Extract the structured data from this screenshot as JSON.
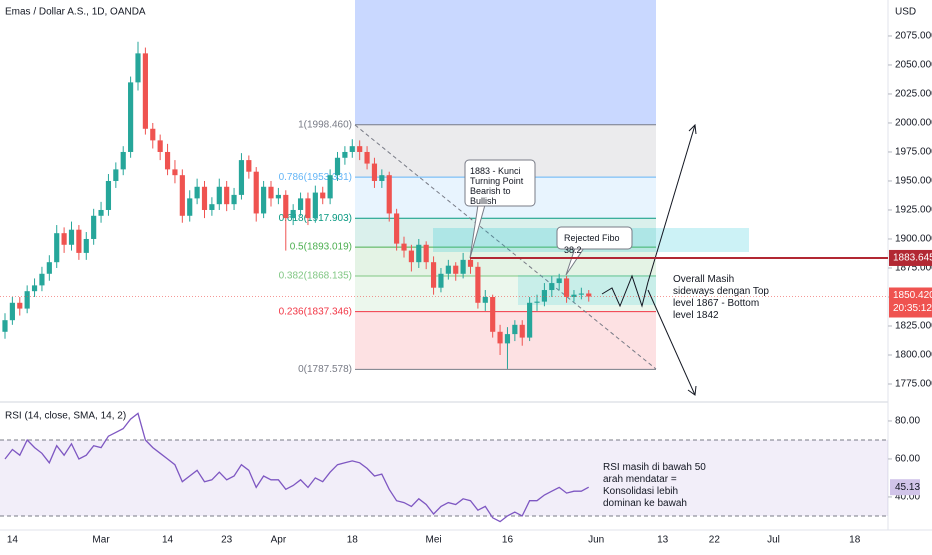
{
  "chart_data": [
    {
      "type": "candlestick",
      "title": "Emas / Dollar A.S., 1D, OANDA",
      "y_axis_label": "USD",
      "categories": [
        null,
        "14",
        null,
        null,
        null,
        null,
        null,
        null,
        null,
        null,
        null,
        null,
        null,
        "Mar",
        null,
        null,
        null,
        null,
        null,
        null,
        null,
        null,
        "14",
        null,
        null,
        null,
        null,
        null,
        null,
        null,
        "23",
        null,
        null,
        null,
        null,
        null,
        null,
        "Apr",
        null,
        null,
        null,
        null,
        null,
        null,
        null,
        null,
        null,
        "18",
        null,
        null,
        null,
        null,
        null,
        null,
        null,
        null,
        null,
        null,
        "Mei",
        null,
        null,
        null,
        null,
        null,
        null,
        null,
        null,
        null,
        "16",
        null,
        null,
        null,
        null,
        null,
        null,
        null,
        null,
        null,
        null,
        null,
        "Jun",
        null,
        null,
        null,
        null,
        null,
        null,
        null,
        null,
        "13",
        null,
        null,
        null,
        null,
        null,
        null,
        "22",
        null,
        null,
        null,
        null,
        null,
        null,
        null,
        "Jul",
        null,
        null,
        null,
        null,
        null,
        null,
        null,
        null,
        null,
        null,
        "18",
        null,
        null,
        null,
        null
      ],
      "open": [
        1820,
        1830,
        1845,
        1840,
        1855,
        1860,
        1870,
        1880,
        1905,
        1895,
        1908,
        1888,
        1900,
        1920,
        1925,
        1950,
        1960,
        1975,
        2035,
        2060,
        1995,
        1985,
        1975,
        1960,
        1955,
        1920,
        1935,
        1945,
        1925,
        1930,
        1945,
        1930,
        1938,
        1968,
        1958,
        1922,
        1945,
        1935,
        1938,
        1918,
        1925,
        1935,
        1918,
        1940,
        1935,
        1955,
        1970,
        1975,
        1980,
        1975,
        1965,
        1950,
        1955,
        1922,
        1896,
        1890,
        1880,
        1895,
        1880,
        1858,
        1870,
        1877,
        1870,
        1882,
        1876,
        1845,
        1850,
        1820,
        1810,
        1818,
        1826,
        1815,
        1845,
        1846,
        1856,
        1862,
        1866,
        1850,
        1852,
        1853,
        null,
        null,
        null,
        null,
        null,
        null,
        null,
        null,
        null,
        null,
        null,
        null,
        null,
        null,
        null,
        null,
        null,
        null,
        null,
        null,
        null,
        null,
        null,
        null,
        null,
        null,
        null,
        null,
        null,
        null,
        null,
        null,
        null,
        null,
        null,
        null,
        null,
        null,
        null,
        null
      ],
      "high": [
        1836,
        1850,
        1850,
        1860,
        1866,
        1876,
        1886,
        1912,
        1910,
        1915,
        1912,
        1906,
        1926,
        1932,
        1956,
        1966,
        1980,
        2040,
        2070,
        2065,
        2000,
        1990,
        1982,
        1968,
        1960,
        1942,
        1952,
        1950,
        1936,
        1952,
        1950,
        1944,
        1974,
        1972,
        1962,
        1950,
        1950,
        1944,
        1942,
        1930,
        1940,
        1940,
        1946,
        1945,
        1960,
        1975,
        1980,
        1986,
        1985,
        1980,
        1970,
        1960,
        1958,
        1926,
        1902,
        1895,
        1900,
        1898,
        1885,
        1875,
        1882,
        1880,
        1888,
        1884,
        1880,
        1856,
        1852,
        1826,
        1824,
        1830,
        1830,
        1850,
        1852,
        1862,
        1868,
        1870,
        1868,
        1856,
        1858,
        1856,
        null,
        null,
        null,
        null,
        null,
        null,
        null,
        null,
        null,
        null,
        null,
        null,
        null,
        null,
        null,
        null,
        null,
        null,
        null,
        null,
        null,
        null,
        null,
        null,
        null,
        null,
        null,
        null,
        null,
        null,
        null,
        null,
        null,
        null,
        null,
        null,
        null,
        null,
        null,
        null
      ],
      "low": [
        1814,
        1826,
        1834,
        1836,
        1850,
        1855,
        1864,
        1875,
        1888,
        1890,
        1882,
        1882,
        1895,
        1914,
        1920,
        1944,
        1955,
        1970,
        2028,
        1990,
        1978,
        1968,
        1955,
        1948,
        1914,
        1915,
        1930,
        1918,
        1920,
        1925,
        1924,
        1925,
        1934,
        1952,
        1915,
        1918,
        1928,
        1930,
        1890,
        1912,
        1920,
        1912,
        1914,
        1930,
        1930,
        1950,
        1964,
        1970,
        1968,
        1960,
        1944,
        1944,
        1915,
        1890,
        1884,
        1872,
        1875,
        1874,
        1852,
        1854,
        1865,
        1864,
        1866,
        1870,
        1840,
        1838,
        1815,
        1800,
        1788,
        1812,
        1808,
        1812,
        1838,
        1842,
        1850,
        1856,
        1845,
        1846,
        1848,
        1846,
        null,
        null,
        null,
        null,
        null,
        null,
        null,
        null,
        null,
        null,
        null,
        null,
        null,
        null,
        null,
        null,
        null,
        null,
        null,
        null,
        null,
        null,
        null,
        null,
        null,
        null,
        null,
        null,
        null,
        null,
        null,
        null,
        null,
        null,
        null,
        null,
        null,
        null,
        null,
        null
      ],
      "close": [
        1830,
        1845,
        1840,
        1855,
        1860,
        1870,
        1880,
        1905,
        1895,
        1908,
        1888,
        1900,
        1920,
        1925,
        1950,
        1960,
        1975,
        2035,
        2060,
        1995,
        1985,
        1975,
        1960,
        1955,
        1920,
        1935,
        1945,
        1925,
        1930,
        1945,
        1930,
        1938,
        1968,
        1958,
        1922,
        1945,
        1935,
        1938,
        1918,
        1925,
        1935,
        1918,
        1940,
        1935,
        1955,
        1970,
        1975,
        1980,
        1975,
        1965,
        1950,
        1955,
        1922,
        1896,
        1890,
        1880,
        1895,
        1880,
        1858,
        1870,
        1877,
        1870,
        1882,
        1876,
        1845,
        1850,
        1820,
        1810,
        1818,
        1826,
        1815,
        1845,
        1846,
        1856,
        1862,
        1866,
        1850,
        1852,
        1853,
        1850.42,
        null,
        null,
        null,
        null,
        null,
        null,
        null,
        null,
        null,
        null,
        null,
        null,
        null,
        null,
        null,
        null,
        null,
        null,
        null,
        null,
        null,
        null,
        null,
        null,
        null,
        null,
        null,
        null,
        null,
        null,
        null,
        null,
        null,
        null,
        null,
        null,
        null,
        null,
        null,
        null
      ],
      "up_color": "#26a69a",
      "down_color": "#ef5350",
      "ylim": [
        1761.2,
        2106
      ],
      "yticks": [
        {
          "value": 1775,
          "label": "1775.000"
        },
        {
          "value": 1800,
          "label": "1800.000"
        },
        {
          "value": 1825,
          "label": "1825.000"
        },
        {
          "value": 1850,
          "label": "1850.000"
        },
        {
          "value": 1875,
          "label": "1875.000"
        },
        {
          "value": 1900,
          "label": "1900.000"
        },
        {
          "value": 1925,
          "label": "1925.000"
        },
        {
          "value": 1950,
          "label": "1950.000"
        },
        {
          "value": 1975,
          "label": "1975.000"
        },
        {
          "value": 2000,
          "label": "2000.000"
        },
        {
          "value": 2025,
          "label": "2025.000"
        },
        {
          "value": 2050,
          "label": "2050.000"
        },
        {
          "value": 2075,
          "label": "2075.000"
        }
      ],
      "fib_levels": [
        {
          "value": 1998.46,
          "label": "1(1998.460)",
          "color": "#787b86"
        },
        {
          "value": 1953.331,
          "label": "0.786(1953.331)",
          "color": "#64b5f6"
        },
        {
          "value": 1917.903,
          "label": "0.618(1917.903)",
          "color": "#089981"
        },
        {
          "value": 1893.019,
          "label": "0.5(1893.019)",
          "color": "#4caf50"
        },
        {
          "value": 1868.135,
          "label": "0.382(1868.135)",
          "color": "#81c784"
        },
        {
          "value": 1837.346,
          "label": "0.236(1837.346)",
          "color": "#f23645"
        },
        {
          "value": 1787.578,
          "label": "0(1787.578)",
          "color": "#787b86"
        }
      ],
      "hline": 1883.645,
      "last_price": {
        "value": 1850.42,
        "label": "1850.420"
      },
      "countdown": "20:35:12",
      "annotations": [
        "1883 - Kunci Turning Point Bearish to Bullish",
        "Rejected Fibo 38.2",
        "Overall Masih sideways dengan Top level 1867 - Bottom level 1842"
      ]
    },
    {
      "type": "line",
      "title": "RSI (14, close, SMA, 14, 2)",
      "color": "#7e57c2",
      "values": [
        60,
        65,
        62,
        70,
        66,
        63,
        58,
        67,
        62,
        68,
        60,
        62,
        67,
        66,
        72,
        74,
        76,
        81,
        84,
        70,
        66,
        63,
        60,
        57,
        48,
        51,
        54,
        48,
        49,
        53,
        49,
        51,
        57,
        54,
        45,
        51,
        49,
        49,
        44,
        46,
        49,
        45,
        50,
        48,
        53,
        57,
        58,
        59,
        58,
        55,
        51,
        52,
        44,
        38,
        37,
        35,
        39,
        36,
        31,
        35,
        37,
        36,
        39,
        38,
        33,
        35,
        29,
        27,
        30,
        32,
        30,
        38,
        38,
        41,
        43,
        45,
        42,
        43,
        43,
        45.13
      ],
      "ylim": [
        22.6,
        88.4
      ],
      "band": [
        30,
        70
      ],
      "yticks": [
        {
          "value": 40,
          "label": "40.00"
        },
        {
          "value": 60,
          "label": "60.00"
        },
        {
          "value": 80,
          "label": "80.00"
        }
      ],
      "annotation": "RSI masih di bawah 50 arah mendatar = Konsolidasi lebih dominan ke bawah"
    }
  ]
}
